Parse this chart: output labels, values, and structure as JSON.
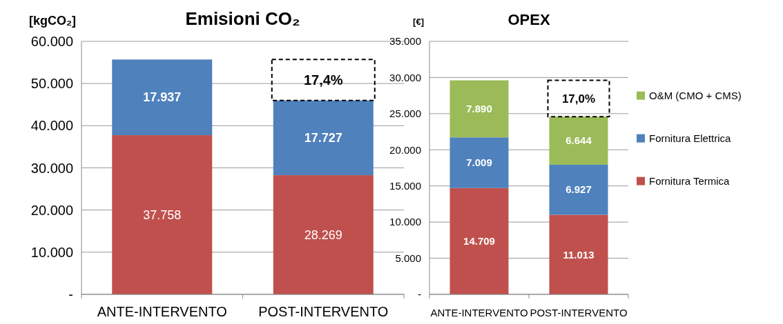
{
  "chart_data": [
    {
      "type": "bar",
      "title": "Emisioni CO₂",
      "ylabel": "[kgCO₂]",
      "stacked": true,
      "grid": "y",
      "legend": false,
      "categories": [
        "ANTE-INTERVENTO",
        "POST-INTERVENTO"
      ],
      "series": [
        {
          "color": "#c0504d",
          "values": [
            37758,
            28269
          ],
          "value_labels": [
            "37.758",
            "28.269"
          ]
        },
        {
          "color": "#4f81bd",
          "values": [
            17937,
            17727
          ],
          "value_labels": [
            "17.937",
            "17.727"
          ]
        }
      ],
      "ylim": [
        0,
        60000
      ],
      "yticks": [
        {
          "value": 0,
          "label": "-"
        },
        {
          "value": 10000,
          "label": "10.000"
        },
        {
          "value": 20000,
          "label": "20.000"
        },
        {
          "value": 30000,
          "label": "30.000"
        },
        {
          "value": 40000,
          "label": "40.000"
        },
        {
          "value": 50000,
          "label": "50.000"
        },
        {
          "value": 60000,
          "label": "60.000"
        }
      ],
      "annotations": [
        "17,4%"
      ]
    },
    {
      "type": "bar",
      "title": "OPEX",
      "ylabel": "[€]",
      "stacked": true,
      "grid": "y",
      "legend": "right",
      "categories": [
        "ANTE-INTERVENTO",
        "POST-INTERVENTO"
      ],
      "series": [
        {
          "name": "Fornitura Termica",
          "color": "#c0504d",
          "values": [
            14709,
            11013
          ],
          "value_labels": [
            "14.709",
            "11.013"
          ]
        },
        {
          "name": "Fornitura Elettrica",
          "color": "#4f81bd",
          "values": [
            7009,
            6927
          ],
          "value_labels": [
            "7.009",
            "6.927"
          ]
        },
        {
          "name": "O&M (CMO + CMS)",
          "color": "#9bbb59",
          "values": [
            7890,
            6644
          ],
          "value_labels": [
            "7.890",
            "6.644"
          ]
        }
      ],
      "ylim": [
        0,
        35000
      ],
      "yticks": [
        {
          "value": 0,
          "label": "-"
        },
        {
          "value": 5000,
          "label": "5.000"
        },
        {
          "value": 10000,
          "label": "10.000"
        },
        {
          "value": 15000,
          "label": "15.000"
        },
        {
          "value": 20000,
          "label": "20.000"
        },
        {
          "value": 25000,
          "label": "25.000"
        },
        {
          "value": 30000,
          "label": "30.000"
        },
        {
          "value": 35000,
          "label": "35.000"
        }
      ],
      "annotations": [
        "17,0%"
      ]
    }
  ]
}
